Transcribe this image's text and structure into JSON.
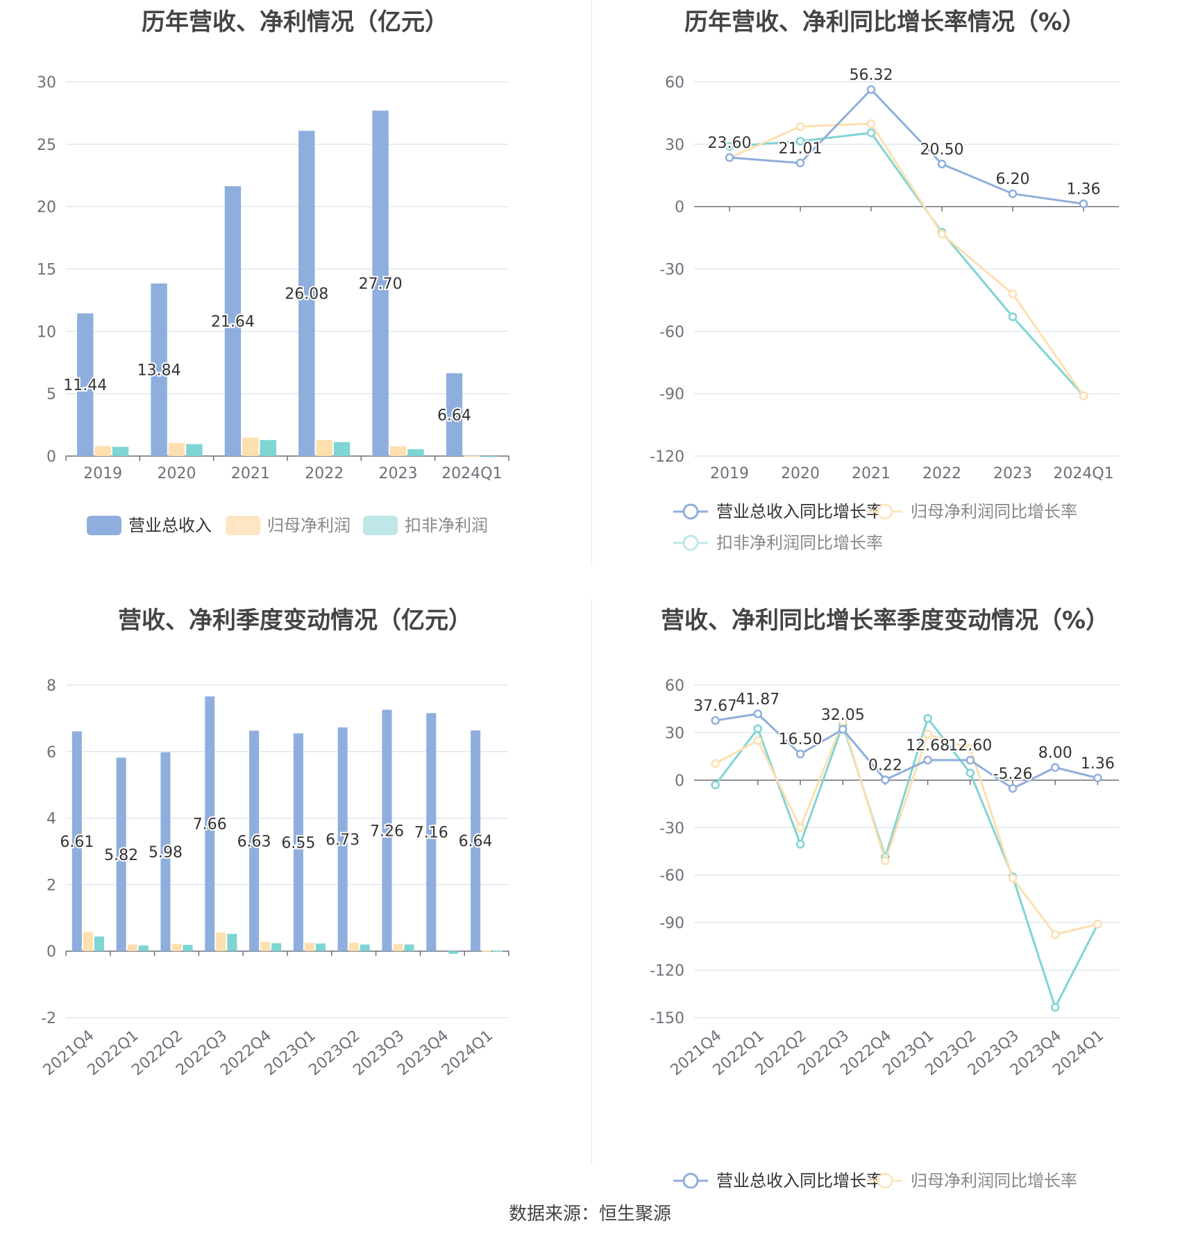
{
  "source": {
    "label": "数据来源：",
    "name": "恒生聚源"
  },
  "colors": {
    "revenue": "#8eaedd",
    "net_profit": "#fedfaf",
    "deducted": "#7fd4d4",
    "deducted_legend": "#bfe7e7",
    "net_profit_legend": "#fee6c2",
    "revenue_legend": "#8eaedd"
  },
  "chart_data": [
    {
      "id": "annual_values",
      "type": "bar",
      "title": "历年营收、净利情况（亿元）",
      "categories": [
        "2019",
        "2020",
        "2021",
        "2022",
        "2023",
        "2024Q1"
      ],
      "ylim": [
        0,
        30
      ],
      "yticks": [
        0,
        5,
        10,
        15,
        20,
        25,
        30
      ],
      "grid": true,
      "legend_position": "bottom",
      "label_series": 0,
      "series": [
        {
          "name": "营业总收入",
          "values": [
            11.44,
            13.84,
            21.64,
            26.08,
            27.7,
            6.64
          ],
          "labels": [
            "11.44",
            "13.84",
            "21.64",
            "26.08",
            "27.70",
            "6.64"
          ]
        },
        {
          "name": "归母净利润",
          "values": [
            0.8,
            1.06,
            1.48,
            1.28,
            0.78,
            0.02
          ]
        },
        {
          "name": "扣非净利润",
          "values": [
            0.74,
            0.96,
            1.28,
            1.12,
            0.55,
            0.01
          ]
        }
      ]
    },
    {
      "id": "annual_growth",
      "type": "line",
      "title": "历年营收、净利同比增长率情况（%）",
      "categories": [
        "2019",
        "2020",
        "2021",
        "2022",
        "2023",
        "2024Q1"
      ],
      "ylim": [
        -120,
        60
      ],
      "yticks": [
        -120,
        -90,
        -60,
        -30,
        0,
        30,
        60
      ],
      "grid": true,
      "legend_position": "bottom",
      "label_series": 0,
      "series": [
        {
          "name": "营业总收入同比增长率",
          "values": [
            23.6,
            21.01,
            56.32,
            20.5,
            6.2,
            1.36
          ],
          "labels": [
            "23.60",
            "21.01",
            "56.32",
            "20.50",
            "6.20",
            "1.36"
          ]
        },
        {
          "name": "归母净利润同比增长率",
          "values": [
            23.5,
            38.5,
            39.9,
            -13.2,
            -42.0,
            -91.0
          ]
        },
        {
          "name": "扣非净利润同比增长率",
          "values": [
            29.0,
            31.5,
            35.5,
            -12.3,
            -53.0,
            -91.0
          ]
        }
      ]
    },
    {
      "id": "quarterly_values",
      "type": "bar",
      "title": "营收、净利季度变动情况（亿元）",
      "categories": [
        "2021Q4",
        "2022Q1",
        "2022Q2",
        "2022Q3",
        "2022Q4",
        "2023Q1",
        "2023Q2",
        "2023Q3",
        "2023Q4",
        "2024Q1"
      ],
      "ylim": [
        -2,
        8
      ],
      "yticks": [
        -2,
        0,
        2,
        4,
        6,
        8
      ],
      "grid": true,
      "legend_position": "bottom",
      "label_series": 0,
      "series": [
        {
          "name": "营业总收入",
          "values": [
            6.61,
            5.82,
            5.98,
            7.66,
            6.63,
            6.55,
            6.73,
            7.26,
            7.16,
            6.64
          ],
          "labels": [
            "6.61",
            "5.82",
            "5.98",
            "7.66",
            "6.63",
            "6.55",
            "6.73",
            "7.26",
            "7.16",
            "6.64"
          ]
        },
        {
          "name": "归母净利润",
          "values": [
            0.58,
            0.2,
            0.22,
            0.56,
            0.28,
            0.25,
            0.25,
            0.22,
            0.0,
            0.02
          ]
        },
        {
          "name": "扣非净利润",
          "values": [
            0.44,
            0.17,
            0.19,
            0.52,
            0.24,
            0.23,
            0.2,
            0.2,
            -0.08,
            0.01
          ]
        }
      ]
    },
    {
      "id": "quarterly_growth",
      "type": "line",
      "title": "营收、净利同比增长率季度变动情况（%）",
      "categories": [
        "2021Q4",
        "2022Q1",
        "2022Q2",
        "2022Q3",
        "2022Q4",
        "2023Q1",
        "2023Q2",
        "2023Q3",
        "2023Q4",
        "2024Q1"
      ],
      "ylim": [
        -150,
        60
      ],
      "yticks": [
        -150,
        -120,
        -90,
        -60,
        -30,
        0,
        30,
        60
      ],
      "grid": true,
      "legend_position": "bottom",
      "label_series": 0,
      "series": [
        {
          "name": "营业总收入同比增长率",
          "values": [
            37.67,
            41.87,
            16.5,
            32.05,
            0.22,
            12.68,
            12.6,
            -5.26,
            8.0,
            1.36
          ],
          "labels": [
            "37.67",
            "41.87",
            "16.50",
            "32.05",
            "0.22",
            "12.68",
            "12.60",
            "-5.26",
            "8.00",
            "1.36"
          ]
        },
        {
          "name": "归母净利润同比增长率",
          "values": [
            10.5,
            25.0,
            -30.0,
            37.0,
            -51.0,
            29.0,
            20.0,
            -62.0,
            -97.5,
            -91.0
          ]
        },
        {
          "name": "扣非净利润同比增长率",
          "values": [
            -3.0,
            32.5,
            -40.5,
            35.0,
            -48.5,
            39.0,
            4.5,
            -61.0,
            -143.5,
            -91.0
          ]
        }
      ]
    }
  ]
}
